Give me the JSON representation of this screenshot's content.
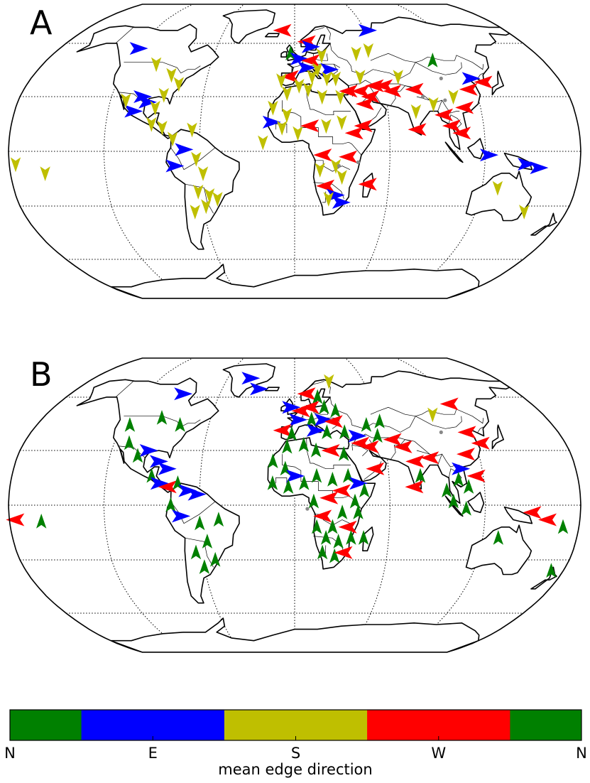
{
  "figure": {
    "colors": {
      "N": "#008000",
      "E": "#0000ff",
      "S": "#bfbf00",
      "W": "#ff0000",
      "missing": "#888888"
    }
  },
  "panels": [
    {
      "label": "A",
      "arrows": [
        {
          "lon": -120,
          "lat": 57,
          "dir": "E"
        },
        {
          "lon": -99,
          "lat": 48,
          "dir": "S"
        },
        {
          "lon": -85,
          "lat": 42,
          "dir": "S"
        },
        {
          "lon": -78,
          "lat": 37,
          "dir": "S"
        },
        {
          "lon": -100,
          "lat": 30,
          "dir": "E"
        },
        {
          "lon": -96,
          "lat": 27,
          "dir": "E"
        },
        {
          "lon": -104,
          "lat": 22,
          "dir": "E"
        },
        {
          "lon": -90,
          "lat": 24,
          "dir": "S"
        },
        {
          "lon": -86,
          "lat": 31,
          "dir": "S"
        },
        {
          "lon": -110,
          "lat": 28,
          "dir": "S"
        },
        {
          "lon": -91,
          "lat": 15,
          "dir": "S"
        },
        {
          "lon": -84,
          "lat": 13,
          "dir": "S"
        },
        {
          "lon": -77,
          "lat": 7,
          "dir": "S"
        },
        {
          "lon": -70,
          "lat": 1,
          "dir": "E"
        },
        {
          "lon": -65,
          "lat": 12,
          "dir": "S"
        },
        {
          "lon": -62,
          "lat": -4,
          "dir": "S"
        },
        {
          "lon": -76,
          "lat": -8,
          "dir": "E"
        },
        {
          "lon": -58,
          "lat": -12,
          "dir": "S"
        },
        {
          "lon": -62,
          "lat": -22,
          "dir": "S"
        },
        {
          "lon": -58,
          "lat": -30,
          "dir": "S"
        },
        {
          "lon": -66,
          "lat": -33,
          "dir": "S"
        },
        {
          "lon": -55,
          "lat": -24,
          "dir": "S"
        },
        {
          "lon": -50,
          "lat": -26,
          "dir": "S"
        },
        {
          "lon": -158,
          "lat": -12,
          "dir": "S"
        },
        {
          "lon": -176,
          "lat": -7,
          "dir": "S"
        },
        {
          "lon": -10,
          "lat": 68,
          "dir": "W"
        },
        {
          "lon": 10,
          "lat": 61,
          "dir": "W"
        },
        {
          "lon": -3,
          "lat": 54,
          "dir": "N"
        },
        {
          "lon": 3,
          "lat": 51,
          "dir": "E"
        },
        {
          "lon": 12,
          "lat": 50,
          "dir": "W"
        },
        {
          "lon": 20,
          "lat": 53,
          "dir": "S"
        },
        {
          "lon": 8,
          "lat": 46,
          "dir": "E"
        },
        {
          "lon": 16,
          "lat": 45,
          "dir": "S"
        },
        {
          "lon": 24,
          "lat": 45,
          "dir": "E"
        },
        {
          "lon": -3,
          "lat": 41,
          "dir": "W"
        },
        {
          "lon": 12,
          "lat": 41,
          "dir": "S"
        },
        {
          "lon": 22,
          "lat": 40,
          "dir": "S"
        },
        {
          "lon": -9,
          "lat": 39,
          "dir": "S"
        },
        {
          "lon": 28,
          "lat": 40,
          "dir": "S"
        },
        {
          "lon": -5,
          "lat": 32,
          "dir": "S"
        },
        {
          "lon": 3,
          "lat": 36,
          "dir": "S"
        },
        {
          "lon": 9,
          "lat": 34,
          "dir": "S"
        },
        {
          "lon": 18,
          "lat": 30,
          "dir": "S"
        },
        {
          "lon": 30,
          "lat": 30,
          "dir": "S"
        },
        {
          "lon": -14,
          "lat": 24,
          "dir": "S"
        },
        {
          "lon": -5,
          "lat": 20,
          "dir": "S"
        },
        {
          "lon": -15,
          "lat": 16,
          "dir": "E"
        },
        {
          "lon": -8,
          "lat": 13,
          "dir": "S"
        },
        {
          "lon": 2,
          "lat": 10,
          "dir": "S"
        },
        {
          "lon": 10,
          "lat": 14,
          "dir": "W"
        },
        {
          "lon": 20,
          "lat": 14,
          "dir": "S"
        },
        {
          "lon": 30,
          "lat": 16,
          "dir": "S"
        },
        {
          "lon": 38,
          "lat": 10,
          "dir": "W"
        },
        {
          "lon": 44,
          "lat": 14,
          "dir": "W"
        },
        {
          "lon": 46,
          "lat": 26,
          "dir": "W"
        },
        {
          "lon": 36,
          "lat": 33,
          "dir": "W"
        },
        {
          "lon": 44,
          "lat": 33,
          "dir": "W"
        },
        {
          "lon": 50,
          "lat": 30,
          "dir": "W"
        },
        {
          "lon": 54,
          "lat": 36,
          "dir": "W"
        },
        {
          "lon": 45,
          "lat": 41,
          "dir": "S"
        },
        {
          "lon": 60,
          "lat": 36,
          "dir": "W"
        },
        {
          "lon": 65,
          "lat": 33,
          "dir": "W"
        },
        {
          "lon": 46,
          "lat": 54,
          "dir": "S"
        },
        {
          "lon": 56,
          "lat": 56,
          "dir": "S"
        },
        {
          "lon": 71,
          "lat": 41,
          "dir": "S"
        },
        {
          "lon": 80,
          "lat": 34,
          "dir": "W"
        },
        {
          "lon": 78,
          "lat": 22,
          "dir": "S"
        },
        {
          "lon": 78,
          "lat": 12,
          "dir": "W"
        },
        {
          "lon": 90,
          "lat": 26,
          "dir": "S"
        },
        {
          "lon": 96,
          "lat": 20,
          "dir": "W"
        },
        {
          "lon": 104,
          "lat": 30,
          "dir": "S"
        },
        {
          "lon": 116,
          "lat": 34,
          "dir": "W"
        },
        {
          "lon": 110,
          "lat": 24,
          "dir": "W"
        },
        {
          "lon": 100,
          "lat": 14,
          "dir": "W"
        },
        {
          "lon": 106,
          "lat": 10,
          "dir": "W"
        },
        {
          "lon": 120,
          "lat": 40,
          "dir": "E"
        },
        {
          "lon": 128,
          "lat": 38,
          "dir": "W"
        },
        {
          "lon": 100,
          "lat": 50,
          "dir": "N"
        },
        {
          "lon": 62,
          "lat": 68,
          "dir": "E"
        },
        {
          "lon": 18,
          "lat": -2,
          "dir": "W"
        },
        {
          "lon": 26,
          "lat": -8,
          "dir": "S"
        },
        {
          "lon": 34,
          "lat": -3,
          "dir": "W"
        },
        {
          "lon": 16,
          "lat": -10,
          "dir": "S"
        },
        {
          "lon": 30,
          "lat": -14,
          "dir": "S"
        },
        {
          "lon": 20,
          "lat": -19,
          "dir": "W"
        },
        {
          "lon": 26,
          "lat": -24,
          "dir": "E"
        },
        {
          "lon": 30,
          "lat": -28,
          "dir": "E"
        },
        {
          "lon": 22,
          "lat": -26,
          "dir": "S"
        },
        {
          "lon": 47,
          "lat": -18,
          "dir": "W"
        },
        {
          "lon": 122,
          "lat": -2,
          "dir": "E"
        },
        {
          "lon": 146,
          "lat": -7,
          "dir": "E"
        },
        {
          "lon": 154,
          "lat": -9,
          "dir": "E"
        },
        {
          "lon": 130,
          "lat": -20,
          "dir": "S"
        },
        {
          "lon": 152,
          "lat": -33,
          "dir": "S"
        },
        {
          "lon": 12,
          "lat": 58,
          "dir": "E"
        },
        {
          "lon": -20,
          "lat": 5,
          "dir": "S"
        }
      ],
      "missing": [
        {
          "lon": 100,
          "lat": 40
        },
        {
          "lon": 84,
          "lat": 30
        },
        {
          "lon": 98,
          "lat": 28
        },
        {
          "lon": 40,
          "lat": -6
        },
        {
          "lon": 28,
          "lat": -8
        }
      ]
    },
    {
      "label": "B",
      "arrows": [
        {
          "lon": -40,
          "lat": 72,
          "dir": "E"
        },
        {
          "lon": -30,
          "lat": 65,
          "dir": "E"
        },
        {
          "lon": -90,
          "lat": 62,
          "dir": "E"
        },
        {
          "lon": -115,
          "lat": 44,
          "dir": "N"
        },
        {
          "lon": -95,
          "lat": 48,
          "dir": "N"
        },
        {
          "lon": -80,
          "lat": 44,
          "dir": "N"
        },
        {
          "lon": -110,
          "lat": 34,
          "dir": "N"
        },
        {
          "lon": -102,
          "lat": 27,
          "dir": "N"
        },
        {
          "lon": -96,
          "lat": 30,
          "dir": "E"
        },
        {
          "lon": -88,
          "lat": 24,
          "dir": "E"
        },
        {
          "lon": -82,
          "lat": 20,
          "dir": "E"
        },
        {
          "lon": -91,
          "lat": 16,
          "dir": "N"
        },
        {
          "lon": -86,
          "lat": 12,
          "dir": "E"
        },
        {
          "lon": -80,
          "lat": 10,
          "dir": "W"
        },
        {
          "lon": -74,
          "lat": 12,
          "dir": "N"
        },
        {
          "lon": -68,
          "lat": 8,
          "dir": "E"
        },
        {
          "lon": -62,
          "lat": 6,
          "dir": "E"
        },
        {
          "lon": -78,
          "lat": 0,
          "dir": "N"
        },
        {
          "lon": -72,
          "lat": -6,
          "dir": "E"
        },
        {
          "lon": -60,
          "lat": -10,
          "dir": "N"
        },
        {
          "lon": -48,
          "lat": -8,
          "dir": "N"
        },
        {
          "lon": -56,
          "lat": -20,
          "dir": "N"
        },
        {
          "lon": -64,
          "lat": -26,
          "dir": "N"
        },
        {
          "lon": -52,
          "lat": -30,
          "dir": "N"
        },
        {
          "lon": -60,
          "lat": -34,
          "dir": "N"
        },
        {
          "lon": -176,
          "lat": -8,
          "dir": "W"
        },
        {
          "lon": -160,
          "lat": -9,
          "dir": "N"
        },
        {
          "lon": 30,
          "lat": 70,
          "dir": "S"
        },
        {
          "lon": 10,
          "lat": 62,
          "dir": "W"
        },
        {
          "lon": 18,
          "lat": 60,
          "dir": "N"
        },
        {
          "lon": -3,
          "lat": 54,
          "dir": "E"
        },
        {
          "lon": 5,
          "lat": 52,
          "dir": "W"
        },
        {
          "lon": 12,
          "lat": 54,
          "dir": "W"
        },
        {
          "lon": 22,
          "lat": 54,
          "dir": "N"
        },
        {
          "lon": 30,
          "lat": 52,
          "dir": "N"
        },
        {
          "lon": 2,
          "lat": 47,
          "dir": "E"
        },
        {
          "lon": 12,
          "lat": 47,
          "dir": "N"
        },
        {
          "lon": 20,
          "lat": 47,
          "dir": "E"
        },
        {
          "lon": 28,
          "lat": 46,
          "dir": "W"
        },
        {
          "lon": -8,
          "lat": 41,
          "dir": "W"
        },
        {
          "lon": -2,
          "lat": 39,
          "dir": "N"
        },
        {
          "lon": 14,
          "lat": 41,
          "dir": "E"
        },
        {
          "lon": 22,
          "lat": 40,
          "dir": "N"
        },
        {
          "lon": 34,
          "lat": 40,
          "dir": "N"
        },
        {
          "lon": -5,
          "lat": 32,
          "dir": "N"
        },
        {
          "lon": 6,
          "lat": 33,
          "dir": "N"
        },
        {
          "lon": 14,
          "lat": 30,
          "dir": "N"
        },
        {
          "lon": 24,
          "lat": 30,
          "dir": "W"
        },
        {
          "lon": 32,
          "lat": 28,
          "dir": "N"
        },
        {
          "lon": -14,
          "lat": 24,
          "dir": "N"
        },
        {
          "lon": -6,
          "lat": 20,
          "dir": "N"
        },
        {
          "lon": 0,
          "lat": 16,
          "dir": "E"
        },
        {
          "lon": -14,
          "lat": 12,
          "dir": "N"
        },
        {
          "lon": -4,
          "lat": 10,
          "dir": "N"
        },
        {
          "lon": 6,
          "lat": 12,
          "dir": "N"
        },
        {
          "lon": 14,
          "lat": 16,
          "dir": "N"
        },
        {
          "lon": 24,
          "lat": 14,
          "dir": "N"
        },
        {
          "lon": 34,
          "lat": 16,
          "dir": "N"
        },
        {
          "lon": 40,
          "lat": 12,
          "dir": "E"
        },
        {
          "lon": 44,
          "lat": 8,
          "dir": "N"
        },
        {
          "lon": 30,
          "lat": 8,
          "dir": "W"
        },
        {
          "lon": 22,
          "lat": 4,
          "dir": "W"
        },
        {
          "lon": 12,
          "lat": 2,
          "dir": "N"
        },
        {
          "lon": 38,
          "lat": 2,
          "dir": "N"
        },
        {
          "lon": 30,
          "lat": -4,
          "dir": "N"
        },
        {
          "lon": 18,
          "lat": -6,
          "dir": "W"
        },
        {
          "lon": 40,
          "lat": -4,
          "dir": "N"
        },
        {
          "lon": 14,
          "lat": -12,
          "dir": "N"
        },
        {
          "lon": 24,
          "lat": -12,
          "dir": "N"
        },
        {
          "lon": 34,
          "lat": -12,
          "dir": "W"
        },
        {
          "lon": 20,
          "lat": -18,
          "dir": "N"
        },
        {
          "lon": 28,
          "lat": -20,
          "dir": "N"
        },
        {
          "lon": 36,
          "lat": -18,
          "dir": "N"
        },
        {
          "lon": 44,
          "lat": -18,
          "dir": "N"
        },
        {
          "lon": 18,
          "lat": -26,
          "dir": "N"
        },
        {
          "lon": 26,
          "lat": -28,
          "dir": "N"
        },
        {
          "lon": 32,
          "lat": -26,
          "dir": "W"
        },
        {
          "lon": 44,
          "lat": 34,
          "dir": "W"
        },
        {
          "lon": 50,
          "lat": 32,
          "dir": "W"
        },
        {
          "lon": 42,
          "lat": 38,
          "dir": "E"
        },
        {
          "lon": 56,
          "lat": 38,
          "dir": "N"
        },
        {
          "lon": 50,
          "lat": 44,
          "dir": "N"
        },
        {
          "lon": 60,
          "lat": 46,
          "dir": "N"
        },
        {
          "lon": 66,
          "lat": 36,
          "dir": "W"
        },
        {
          "lon": 72,
          "lat": 32,
          "dir": "W"
        },
        {
          "lon": 78,
          "lat": 24,
          "dir": "W"
        },
        {
          "lon": 80,
          "lat": 16,
          "dir": "N"
        },
        {
          "lon": 76,
          "lat": 10,
          "dir": "W"
        },
        {
          "lon": 88,
          "lat": 26,
          "dir": "W"
        },
        {
          "lon": 100,
          "lat": 50,
          "dir": "S"
        },
        {
          "lon": 118,
          "lat": 56,
          "dir": "W"
        },
        {
          "lon": 106,
          "lat": 20,
          "dir": "E"
        },
        {
          "lon": 112,
          "lat": 28,
          "dir": "W"
        },
        {
          "lon": 118,
          "lat": 40,
          "dir": "W"
        },
        {
          "lon": 104,
          "lat": 14,
          "dir": "N"
        },
        {
          "lon": 110,
          "lat": 10,
          "dir": "N"
        },
        {
          "lon": 116,
          "lat": 16,
          "dir": "W"
        },
        {
          "lon": 96,
          "lat": 8,
          "dir": "N"
        },
        {
          "lon": 100,
          "lat": 2,
          "dir": "N"
        },
        {
          "lon": 108,
          "lat": -2,
          "dir": "N"
        },
        {
          "lon": 150,
          "lat": -4,
          "dir": "W"
        },
        {
          "lon": 160,
          "lat": -8,
          "dir": "W"
        },
        {
          "lon": 170,
          "lat": -12,
          "dir": "N"
        },
        {
          "lon": 130,
          "lat": -18,
          "dir": "N"
        },
        {
          "lon": 172,
          "lat": -36,
          "dir": "N"
        },
        {
          "lon": 124,
          "lat": 34,
          "dir": "W"
        },
        {
          "lon": 52,
          "lat": 20,
          "dir": "W"
        }
      ],
      "missing": [
        {
          "lon": 100,
          "lat": 40
        },
        {
          "lon": 8,
          "lat": -2
        }
      ]
    }
  ],
  "colorbar": {
    "title": "mean edge direction",
    "ticks": [
      "N",
      "E",
      "S",
      "W",
      "N"
    ],
    "segments": [
      {
        "dir": "N",
        "from": 0,
        "to": 0.125
      },
      {
        "dir": "E",
        "from": 0.125,
        "to": 0.375
      },
      {
        "dir": "S",
        "from": 0.375,
        "to": 0.625
      },
      {
        "dir": "W",
        "from": 0.625,
        "to": 0.875
      },
      {
        "dir": "N",
        "from": 0.875,
        "to": 1
      }
    ]
  }
}
